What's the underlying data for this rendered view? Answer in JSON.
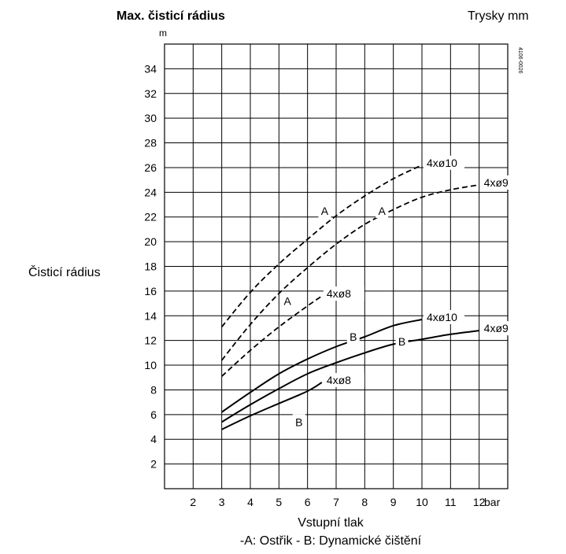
{
  "header": {
    "title": "Max. čisticí rádius",
    "y_unit": "m",
    "right_label": "Trysky mm",
    "code": "4106-0026"
  },
  "chart_data": {
    "type": "line",
    "title": "Max. čisticí rádius",
    "ylabel": "Čisticí rádius",
    "y_unit": "m",
    "xlabel": "Vstupní tlak",
    "x_unit": "bar",
    "caption": "-A: Ostřik - B: Dynamické čištění",
    "xlim": [
      1,
      13
    ],
    "ylim": [
      0,
      36
    ],
    "x_ticks": [
      2,
      3,
      4,
      5,
      6,
      7,
      8,
      9,
      10,
      11,
      12
    ],
    "y_ticks": [
      2,
      4,
      6,
      8,
      10,
      12,
      14,
      16,
      18,
      20,
      22,
      24,
      26,
      28,
      30,
      32,
      34
    ],
    "grid": true,
    "series": [
      {
        "name": "4xø10",
        "group": "A",
        "style": "dashed",
        "points": [
          [
            3,
            13.1
          ],
          [
            4,
            15.9
          ],
          [
            5,
            18.2
          ],
          [
            6,
            20.2
          ],
          [
            7,
            22.1
          ],
          [
            8,
            23.7
          ],
          [
            9,
            25.1
          ],
          [
            10,
            26.2
          ]
        ]
      },
      {
        "name": "4xø9",
        "group": "A",
        "style": "dashed",
        "points": [
          [
            3,
            10.4
          ],
          [
            4,
            13.3
          ],
          [
            5,
            15.8
          ],
          [
            6,
            17.9
          ],
          [
            7,
            19.8
          ],
          [
            8,
            21.4
          ],
          [
            9,
            22.6
          ],
          [
            10,
            23.6
          ],
          [
            11,
            24.2
          ],
          [
            12,
            24.6
          ]
        ]
      },
      {
        "name": "4xø8",
        "group": "A",
        "style": "dashed",
        "points": [
          [
            3,
            9.1
          ],
          [
            4,
            11.2
          ],
          [
            5,
            13.1
          ],
          [
            6,
            14.8
          ],
          [
            6.5,
            15.6
          ]
        ]
      },
      {
        "name": "4xø10",
        "group": "B",
        "style": "solid",
        "points": [
          [
            3,
            6.2
          ],
          [
            4,
            7.8
          ],
          [
            5,
            9.3
          ],
          [
            6,
            10.5
          ],
          [
            7,
            11.5
          ],
          [
            8,
            12.3
          ],
          [
            9,
            13.2
          ],
          [
            10,
            13.7
          ]
        ]
      },
      {
        "name": "4xø9",
        "group": "B",
        "style": "solid",
        "points": [
          [
            3,
            5.4
          ],
          [
            4,
            6.8
          ],
          [
            5,
            8.1
          ],
          [
            6,
            9.3
          ],
          [
            7,
            10.2
          ],
          [
            8,
            11.0
          ],
          [
            9,
            11.7
          ],
          [
            10,
            12.1
          ],
          [
            11,
            12.5
          ],
          [
            12,
            12.8
          ]
        ]
      },
      {
        "name": "4xø8",
        "group": "B",
        "style": "solid",
        "points": [
          [
            3,
            4.8
          ],
          [
            4,
            5.9
          ],
          [
            5,
            6.9
          ],
          [
            6,
            7.9
          ],
          [
            6.5,
            8.6
          ]
        ]
      }
    ],
    "annotations": [
      {
        "text": "A",
        "x": 6.6,
        "y": 22.5
      },
      {
        "text": "A",
        "x": 8.6,
        "y": 22.5
      },
      {
        "text": "A",
        "x": 5.3,
        "y": 15.2
      },
      {
        "text": "B",
        "x": 7.6,
        "y": 12.3
      },
      {
        "text": "B",
        "x": 9.3,
        "y": 11.9
      },
      {
        "text": "B",
        "x": 5.7,
        "y": 5.4
      }
    ]
  }
}
